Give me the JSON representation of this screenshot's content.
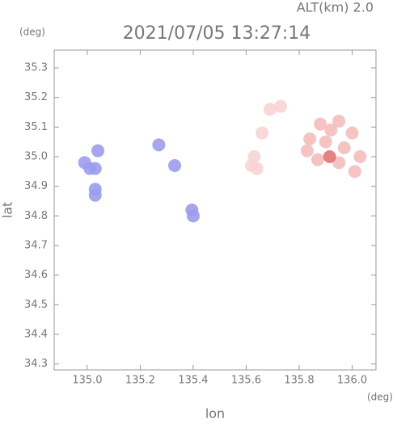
{
  "chart_data": {
    "type": "scatter",
    "altitude_label": "ALT(km) 2.0",
    "title": "2021/07/05 13:27:14",
    "y_unit": "(deg)",
    "x_unit": "(deg)",
    "ylabel": "lat",
    "xlabel": "lon",
    "xlim": [
      134.875,
      136.09
    ],
    "ylim": [
      34.28,
      35.36
    ],
    "xticks": [
      {
        "value": 135.0,
        "label": "135.0"
      },
      135.2,
      135.4,
      135.6,
      135.8,
      {
        "value": 136.0,
        "label": "136.0"
      }
    ],
    "yticks": [
      34.3,
      34.4,
      34.5,
      34.6,
      34.7,
      34.8,
      34.9,
      {
        "value": 35.0,
        "label": "35.0"
      },
      35.1,
      35.2,
      35.3
    ],
    "series": [
      {
        "color": "#9c9cee",
        "x": [
          134.99,
          135.01,
          135.03,
          135.04,
          135.03,
          135.03,
          135.4,
          135.395,
          135.33,
          135.27
        ],
        "y": [
          34.98,
          34.96,
          34.96,
          35.02,
          34.89,
          34.87,
          34.8,
          34.82,
          34.97,
          35.04
        ]
      },
      {
        "color": "#f7d4d4",
        "x": [
          135.63,
          135.62,
          135.64,
          135.66,
          135.69,
          135.73
        ],
        "y": [
          35.0,
          34.97,
          34.96,
          35.08,
          35.16,
          35.17
        ]
      },
      {
        "color": "#f5bcbc",
        "x": [
          135.84,
          135.88,
          135.95,
          136.0,
          135.9,
          135.97,
          136.03,
          135.87,
          135.95,
          136.01,
          135.83,
          135.92
        ],
        "y": [
          35.06,
          35.11,
          35.12,
          35.08,
          35.05,
          35.03,
          35.0,
          34.99,
          34.98,
          34.95,
          35.02,
          35.09
        ]
      },
      {
        "color": "#e57373",
        "x": [
          135.915
        ],
        "y": [
          35.0
        ]
      }
    ]
  }
}
